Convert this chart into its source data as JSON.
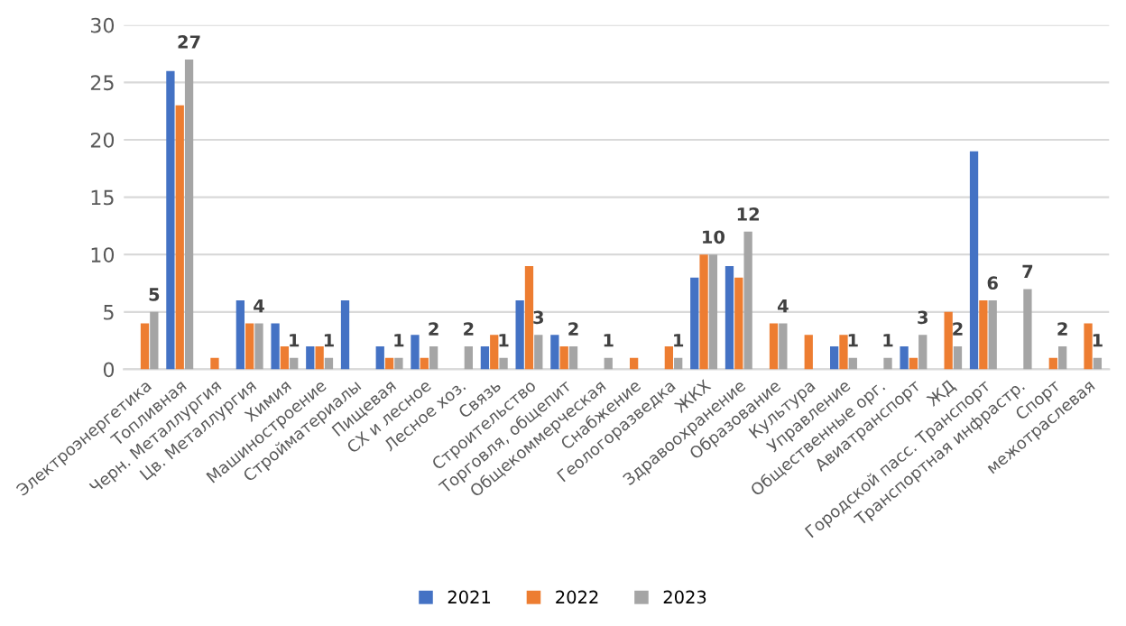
{
  "chart_data": {
    "type": "bar",
    "categories": [
      "Электроэнергетика",
      "Топливная",
      "Черн. Металлургия",
      "Цв. Металлургия",
      "Химия",
      "Машиностроение",
      "Стройматериалы",
      "Пищевая",
      "СХ и лесное",
      "Лесное хоз.",
      "Связь",
      "Строительство",
      "Торговля, общепит",
      "Общекоммерческая",
      "Снабжение",
      "Геологоразведка",
      "ЖКХ",
      "Здравоохранение",
      "Образование",
      "Культура",
      "Управление",
      "Общественные орг.",
      "Авиатранспорт",
      "ЖД",
      "Городской пасс. Транспорт",
      "Транспортная инфрастр.",
      "Спорт",
      "межотраслевая"
    ],
    "series": [
      {
        "name": "2021",
        "color": "#4472c4",
        "values": [
          0,
          26,
          0,
          6,
          4,
          2,
          6,
          2,
          3,
          0,
          2,
          6,
          3,
          0,
          0,
          0,
          8,
          9,
          0,
          0,
          2,
          0,
          2,
          0,
          19,
          0,
          0,
          0
        ]
      },
      {
        "name": "2022",
        "color": "#ed7d31",
        "values": [
          4,
          23,
          1,
          4,
          2,
          2,
          0,
          1,
          1,
          0,
          3,
          9,
          2,
          0,
          1,
          2,
          10,
          8,
          4,
          3,
          3,
          0,
          1,
          5,
          6,
          0,
          1,
          4
        ]
      },
      {
        "name": "2023",
        "color": "#a5a5a5",
        "values": [
          5,
          27,
          0,
          4,
          1,
          1,
          0,
          1,
          2,
          2,
          1,
          3,
          2,
          1,
          0,
          1,
          10,
          12,
          4,
          0,
          1,
          1,
          3,
          2,
          6,
          7,
          2,
          1
        ],
        "value_labels": [
          "5",
          "27",
          null,
          "4",
          "1",
          "1",
          null,
          "1",
          "2",
          "2",
          "1",
          "3",
          "2",
          "1",
          null,
          "1",
          "10",
          "12",
          "4",
          null,
          "1",
          "1",
          "3",
          "2",
          "6",
          "7",
          "2",
          "1"
        ]
      }
    ],
    "ylim": [
      0,
      30
    ],
    "yticks": [
      0,
      5,
      10,
      15,
      20,
      25,
      30
    ],
    "grid": "y",
    "legend": "bottom"
  }
}
